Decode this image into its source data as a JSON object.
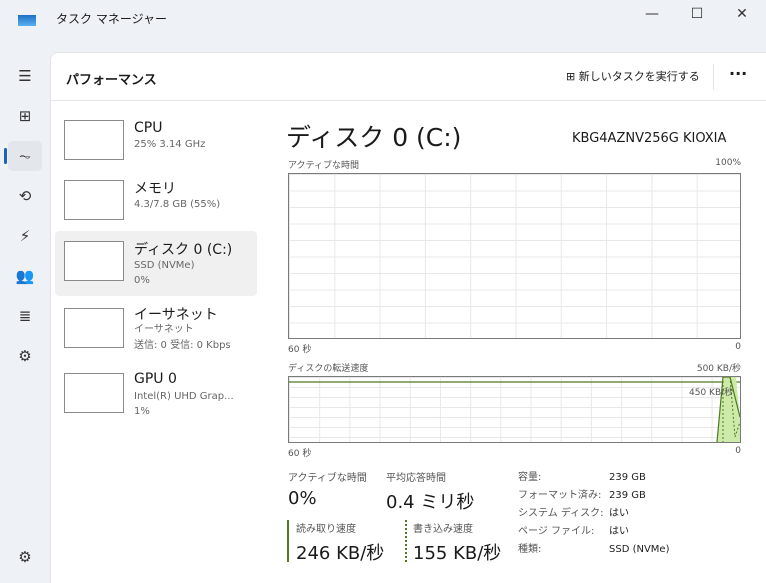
{
  "window": {
    "title": "タスク マネージャー",
    "minimize": "—",
    "maximize": "☐",
    "close": "✕"
  },
  "sidebar": {
    "items": [
      {
        "icon": "hamburger-icon",
        "glyph": "☰"
      },
      {
        "icon": "processes-icon",
        "glyph": "⊞"
      },
      {
        "icon": "performance-icon",
        "glyph": "⏦"
      },
      {
        "icon": "history-icon",
        "glyph": "⟲"
      },
      {
        "icon": "startup-icon",
        "glyph": "⚡"
      },
      {
        "icon": "users-icon",
        "glyph": "👥"
      },
      {
        "icon": "details-icon",
        "glyph": "≣"
      },
      {
        "icon": "services-icon",
        "glyph": "⚙"
      }
    ],
    "settings_glyph": "⚙",
    "selected": "performance"
  },
  "header": {
    "title": "パフォーマンス",
    "new_task": "新しいタスクを実行する",
    "more": "···"
  },
  "devices": [
    {
      "name": "CPU",
      "sub1": "25%  3.14 GHz",
      "sub2": ""
    },
    {
      "name": "メモリ",
      "sub1": "4.3/7.8 GB (55%)",
      "sub2": ""
    },
    {
      "name": "ディスク 0 (C:)",
      "sub1": "SSD (NVMe)",
      "sub2": "0%"
    },
    {
      "name": "イーサネット",
      "sub1": "イーサネット",
      "sub2": "送信: 0 受信: 0 Kbps"
    },
    {
      "name": "GPU 0",
      "sub1": "Intel(R) UHD Grap...",
      "sub2": "1%"
    }
  ],
  "detail": {
    "title": "ディスク 0 (C:)",
    "model": "KBG4AZNV256G KIOXIA",
    "graph1": {
      "label": "アクティブな時間",
      "max": "100%",
      "xleft": "60 秒",
      "xright": "0"
    },
    "graph2": {
      "label": "ディスクの転送速度",
      "max": "500 KB/秒",
      "mark": "450 KB/秒",
      "xleft": "60 秒",
      "xright": "0"
    },
    "stats": {
      "active_label": "アクティブな時間",
      "active": "0%",
      "resp_label": "平均応答時間",
      "resp": "0.4 ミリ秒",
      "read_label": "読み取り速度",
      "read": "246 KB/秒",
      "write_label": "書き込み速度",
      "write": "155 KB/秒"
    },
    "props": [
      [
        "容量:",
        "239 GB"
      ],
      [
        "フォーマット済み:",
        "239 GB"
      ],
      [
        "システム ディスク:",
        "はい"
      ],
      [
        "ページ ファイル:",
        "はい"
      ],
      [
        "種類:",
        "SSD (NVMe)"
      ]
    ]
  },
  "colors": {
    "disk_accent": "#4d7a1f",
    "disk_fill": "#cdeaa8"
  }
}
